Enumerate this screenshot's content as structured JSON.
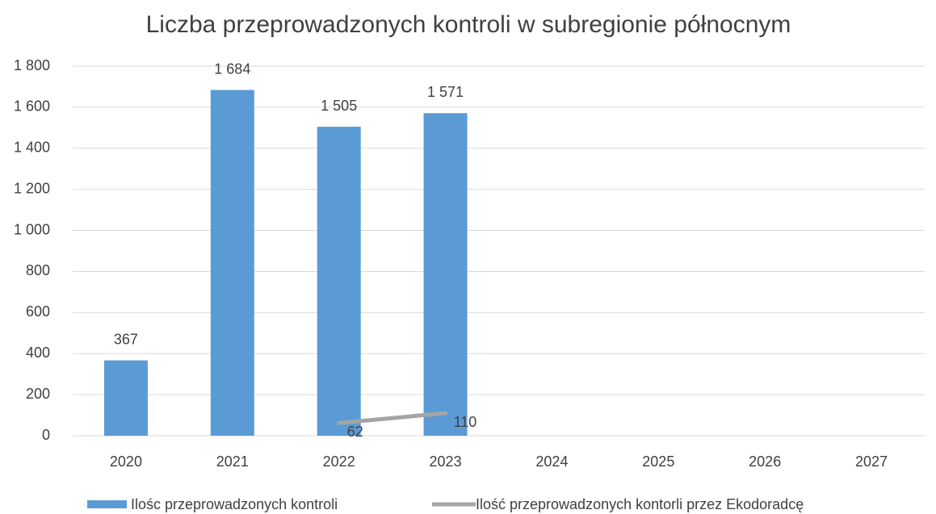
{
  "chart_data": {
    "type": "bar",
    "title": "Liczba przeprowadzonych kontroli w subregionie północnym",
    "categories": [
      "2020",
      "2021",
      "2022",
      "2023",
      "2024",
      "2025",
      "2026",
      "2027"
    ],
    "series": [
      {
        "name": "Ilośc przeprowadzonych  kontroli",
        "type": "bar",
        "color": "#5b9bd5",
        "values": [
          367,
          1684,
          1505,
          1571,
          null,
          null,
          null,
          null
        ],
        "value_labels": [
          "367",
          "1 684",
          "1 505",
          "1 571",
          null,
          null,
          null,
          null
        ]
      },
      {
        "name": "Ilość przeprowadzonych kontorli przez Ekodoradcę",
        "type": "line",
        "color": "#a5a5a5",
        "values": [
          null,
          null,
          62,
          110,
          null,
          null,
          null,
          null
        ]
      }
    ],
    "ylim": [
      0,
      1800
    ],
    "yticks": [
      0,
      200,
      400,
      600,
      800,
      {
        "value": 1000,
        "label": "1 000"
      },
      {
        "value": 1200,
        "label": "1 200"
      },
      {
        "value": 1400,
        "label": "1 400"
      },
      {
        "value": 1600,
        "label": "1 600"
      },
      {
        "value": 1800,
        "label": "1 800"
      }
    ],
    "grid": true,
    "legend": "bottom"
  }
}
